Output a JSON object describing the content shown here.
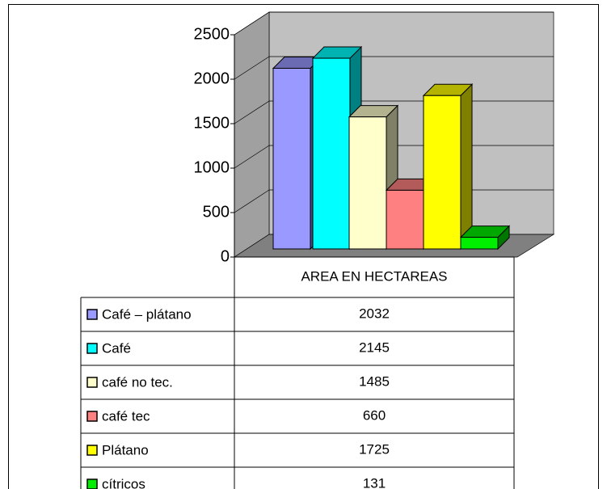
{
  "chart_data": {
    "type": "bar",
    "categories": [
      "Café – plátano",
      "Café",
      "café no tec.",
      "café tec",
      "Plátano",
      "cítricos"
    ],
    "values": [
      2032,
      2145,
      1485,
      660,
      1725,
      131
    ],
    "colors": [
      "#9999ff",
      "#00ffff",
      "#ffffcc",
      "#ff8080",
      "#ffff00",
      "#00ee00"
    ],
    "column_header": "AREA EN HECTAREAS",
    "ylim": [
      0,
      2500
    ],
    "yticks": [
      0,
      500,
      1000,
      1500,
      2000,
      2500
    ],
    "grid": true
  }
}
